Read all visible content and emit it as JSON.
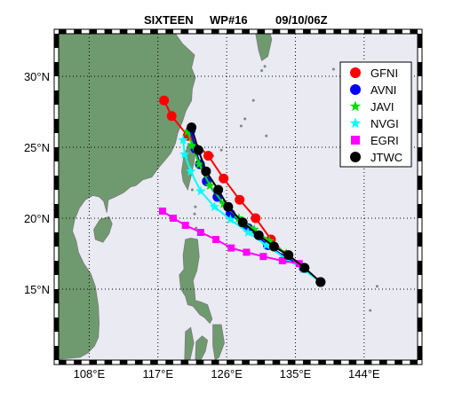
{
  "title": {
    "storm_name": "SIXTEEN",
    "storm_id": "WP#16",
    "datetime": "09/10/06Z"
  },
  "map": {
    "lon_range": [
      104,
      151
    ],
    "lat_range": [
      10,
      33
    ],
    "projection": "cylindrical",
    "ocean_color": "#eaeaf3",
    "land_color": "#6f9a6f",
    "coast_color": "#7a7a7a",
    "grid": "dotted",
    "grid_lons": [
      108,
      117,
      126,
      135,
      144
    ],
    "grid_lats": [
      15,
      20,
      25,
      30
    ],
    "x_tick_labels": [
      "108°E",
      "117°E",
      "126°E",
      "135°E",
      "144°E"
    ],
    "y_tick_labels": [
      "15°N",
      "20°N",
      "25°N",
      "30°N"
    ],
    "frame_style": "black-white checkered border"
  },
  "legend": {
    "placement": "top-right",
    "entries": [
      {
        "label": "GFNI",
        "marker": "circle",
        "color": "#ff0000"
      },
      {
        "label": "AVNI",
        "marker": "circle",
        "color": "#0000ff"
      },
      {
        "label": "JAVI",
        "marker": "star",
        "color": "#00dd00"
      },
      {
        "label": "NVGI",
        "marker": "star",
        "color": "#00ffff"
      },
      {
        "label": "EGRI",
        "marker": "square",
        "color": "#ff00ff"
      },
      {
        "label": "JTWC",
        "marker": "circle",
        "color": "#000000"
      }
    ]
  },
  "chart_data": {
    "type": "scatter",
    "xlabel": "",
    "ylabel": "",
    "xlim": [
      104,
      151
    ],
    "ylim": [
      10,
      33
    ],
    "series": [
      {
        "name": "GFNI",
        "color": "#ff0000",
        "marker": "circle",
        "points": [
          [
            138.3,
            15.5
          ],
          [
            136.1,
            16.5
          ],
          [
            133.8,
            17.4
          ],
          [
            131.8,
            18.5
          ],
          [
            129.8,
            20.0
          ],
          [
            127.7,
            21.3
          ],
          [
            125.6,
            22.8
          ],
          [
            123.6,
            24.4
          ],
          [
            120.9,
            25.8
          ],
          [
            118.8,
            27.2
          ],
          [
            117.8,
            28.3
          ]
        ]
      },
      {
        "name": "AVNI",
        "color": "#0000ff",
        "marker": "circle",
        "points": [
          [
            138.3,
            15.5
          ],
          [
            136.1,
            16.5
          ],
          [
            133.8,
            17.2
          ],
          [
            131.4,
            18.1
          ],
          [
            128.8,
            19.3
          ],
          [
            126.5,
            20.3
          ],
          [
            124.8,
            21.5
          ],
          [
            123.4,
            22.6
          ],
          [
            122.5,
            23.8
          ],
          [
            121.9,
            24.9
          ],
          [
            121.3,
            26.2
          ]
        ]
      },
      {
        "name": "JAVI",
        "color": "#00dd00",
        "marker": "star",
        "points": [
          [
            138.3,
            15.5
          ],
          [
            136.0,
            16.5
          ],
          [
            133.8,
            17.5
          ],
          [
            131.6,
            18.4
          ],
          [
            129.6,
            19.2
          ],
          [
            127.6,
            20.0
          ],
          [
            125.6,
            21.0
          ],
          [
            123.8,
            22.3
          ],
          [
            122.4,
            23.8
          ],
          [
            121.5,
            25.1
          ],
          [
            120.9,
            26.1
          ]
        ]
      },
      {
        "name": "NVGI",
        "color": "#00ffff",
        "marker": "star",
        "points": [
          [
            138.3,
            15.5
          ],
          [
            136.0,
            16.4
          ],
          [
            133.6,
            17.2
          ],
          [
            131.2,
            18.1
          ],
          [
            128.8,
            19.0
          ],
          [
            126.5,
            19.9
          ],
          [
            124.4,
            20.8
          ],
          [
            122.6,
            21.9
          ],
          [
            121.3,
            23.3
          ],
          [
            120.5,
            24.5
          ],
          [
            120.3,
            25.5
          ]
        ]
      },
      {
        "name": "EGRI",
        "color": "#ff00ff",
        "marker": "square",
        "points": [
          [
            135.5,
            16.8
          ],
          [
            133.3,
            17.0
          ],
          [
            130.8,
            17.3
          ],
          [
            128.6,
            17.6
          ],
          [
            126.6,
            17.9
          ],
          [
            124.6,
            18.5
          ],
          [
            122.6,
            19.0
          ],
          [
            120.6,
            19.5
          ],
          [
            119.0,
            20.0
          ],
          [
            117.6,
            20.5
          ]
        ]
      },
      {
        "name": "JTWC",
        "color": "#000000",
        "marker": "circle",
        "points": [
          [
            138.3,
            15.5
          ],
          [
            136.2,
            16.5
          ],
          [
            134.1,
            17.4
          ],
          [
            132.2,
            18.0
          ],
          [
            130.2,
            18.8
          ],
          [
            128.1,
            19.7
          ],
          [
            126.2,
            20.8
          ],
          [
            124.9,
            22.0
          ],
          [
            123.3,
            23.3
          ],
          [
            122.3,
            24.8
          ],
          [
            121.4,
            26.4
          ]
        ]
      }
    ]
  }
}
